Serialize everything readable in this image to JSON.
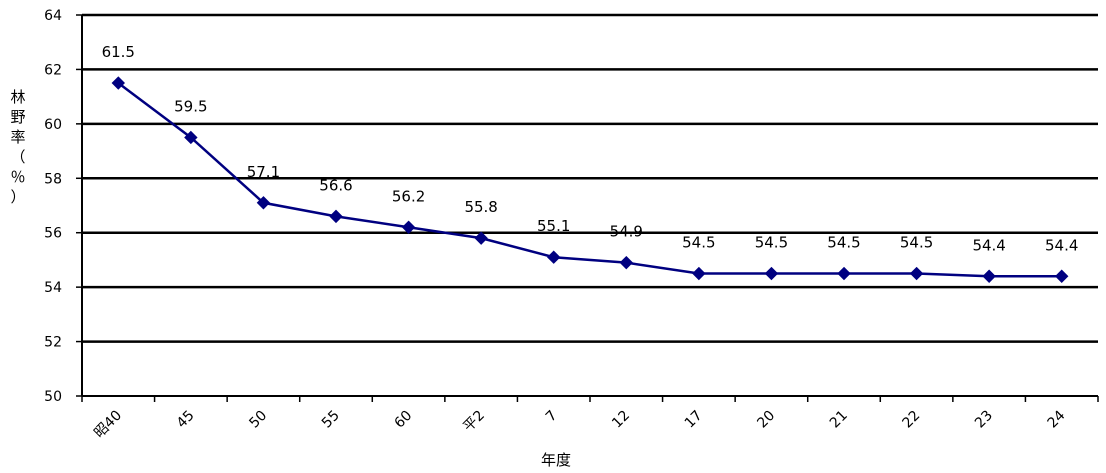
{
  "chart_data": {
    "type": "line",
    "xlabel": "年度",
    "ylabel": "林野率（％）",
    "ylim": [
      50,
      64
    ],
    "yticks": [
      "50",
      "52",
      "54",
      "56",
      "58",
      "60",
      "62",
      "64"
    ],
    "grid": "horizontal",
    "categories": [
      "昭40",
      "45",
      "50",
      "55",
      "60",
      "平2",
      "7",
      "12",
      "17",
      "20",
      "21",
      "22",
      "23",
      "24"
    ],
    "series": [
      {
        "values": [
          61.5,
          59.5,
          57.1,
          56.6,
          56.2,
          55.8,
          55.1,
          54.9,
          54.5,
          54.5,
          54.5,
          54.5,
          54.4,
          54.4
        ],
        "labels": [
          "61.5",
          "59.5",
          "57.1",
          "56.6",
          "56.2",
          "55.8",
          "55.1",
          "54.9",
          "54.5",
          "54.5",
          "54.5",
          "54.5",
          "54.4",
          "54.4"
        ],
        "color": "#000080",
        "marker": "diamond"
      }
    ]
  }
}
